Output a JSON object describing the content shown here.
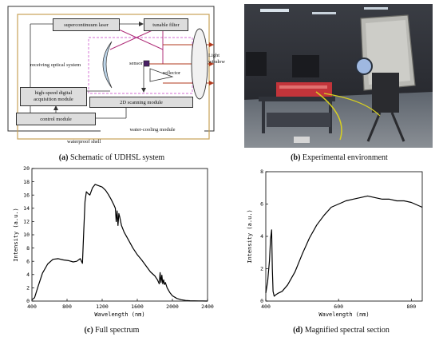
{
  "panel_a": {
    "label": "(a)",
    "caption": "Schematic of UDHSL system",
    "boxes": {
      "laser": "supercontinuum laser",
      "filter": "tunable filter",
      "acquisition_line1": "high-speed digital",
      "acquisition_line2": "acquisition module",
      "scanning": "2D scanning module",
      "control": "control module",
      "cooling": "water-cooling module"
    },
    "labels": {
      "receiving": "receiving optical system",
      "sensor": "sensor",
      "reflector": "reflector",
      "light_line1": "Light",
      "light_line2": "window",
      "shell": "waterproof shell"
    },
    "colors": {
      "laser_beam": "#b0307a",
      "return_beam": "#b23a1e",
      "dashed": "#d36bd3",
      "frame": "#c7a257"
    }
  },
  "panel_b": {
    "label": "(b)",
    "caption": "Experimental environment"
  },
  "panel_c": {
    "label": "(c)",
    "caption": "Full spectrum"
  },
  "panel_d": {
    "label": "(d)",
    "caption": "Magnified spectral section"
  },
  "chart_data": [
    {
      "type": "line",
      "panel": "c",
      "xlabel": "Wavelength (nm)",
      "ylabel": "Intensity (a.u.)",
      "xlim": [
        400,
        2400
      ],
      "ylim": [
        0,
        20
      ],
      "xticks": [
        400,
        800,
        1200,
        1600,
        2000,
        2400
      ],
      "yticks": [
        0,
        2,
        4,
        6,
        8,
        10,
        12,
        14,
        16,
        18,
        20
      ],
      "x": [
        400,
        430,
        470,
        520,
        580,
        640,
        700,
        760,
        820,
        870,
        910,
        950,
        975,
        990,
        1005,
        1020,
        1040,
        1060,
        1090,
        1120,
        1160,
        1200,
        1240,
        1270,
        1300,
        1330,
        1350,
        1360,
        1370,
        1380,
        1390,
        1400,
        1420,
        1450,
        1500,
        1550,
        1600,
        1650,
        1700,
        1750,
        1800,
        1830,
        1850,
        1860,
        1870,
        1880,
        1890,
        1900,
        1910,
        1920,
        1940,
        1970,
        2000,
        2050,
        2100,
        2150,
        2200,
        2300,
        2400
      ],
      "y": [
        0.2,
        0.5,
        2.2,
        4.2,
        5.6,
        6.3,
        6.4,
        6.2,
        6.1,
        5.9,
        6.0,
        6.4,
        5.7,
        10.5,
        15.0,
        16.5,
        16.2,
        16.0,
        17.1,
        17.6,
        17.4,
        17.2,
        16.7,
        16.1,
        15.4,
        14.6,
        14.0,
        12.0,
        13.6,
        11.4,
        13.2,
        12.7,
        11.4,
        10.4,
        9.2,
        8.0,
        7.0,
        6.2,
        5.3,
        4.4,
        3.8,
        3.2,
        2.6,
        4.3,
        2.8,
        3.9,
        2.6,
        3.2,
        2.5,
        2.8,
        2.0,
        1.3,
        0.8,
        0.4,
        0.2,
        0.1,
        0.05,
        0.02,
        0.0
      ]
    },
    {
      "type": "line",
      "panel": "d",
      "xlabel": "Wavelength (nm)",
      "ylabel": "Intensity (a.u.)",
      "xlim": [
        400,
        830
      ],
      "ylim": [
        0,
        8
      ],
      "xticks": [
        400,
        600,
        800
      ],
      "yticks": [
        0,
        2,
        4,
        6,
        8
      ],
      "x": [
        400,
        405,
        410,
        413,
        416,
        418,
        420,
        423,
        428,
        435,
        445,
        460,
        480,
        500,
        520,
        540,
        560,
        580,
        600,
        620,
        640,
        660,
        680,
        700,
        720,
        740,
        760,
        780,
        800,
        820,
        830
      ],
      "y": [
        0.5,
        1.2,
        2.5,
        3.8,
        4.4,
        2.0,
        0.6,
        0.3,
        0.4,
        0.5,
        0.6,
        1.0,
        1.8,
        2.9,
        3.9,
        4.7,
        5.3,
        5.8,
        6.0,
        6.2,
        6.3,
        6.4,
        6.5,
        6.4,
        6.3,
        6.3,
        6.2,
        6.2,
        6.1,
        5.9,
        5.8
      ]
    }
  ]
}
